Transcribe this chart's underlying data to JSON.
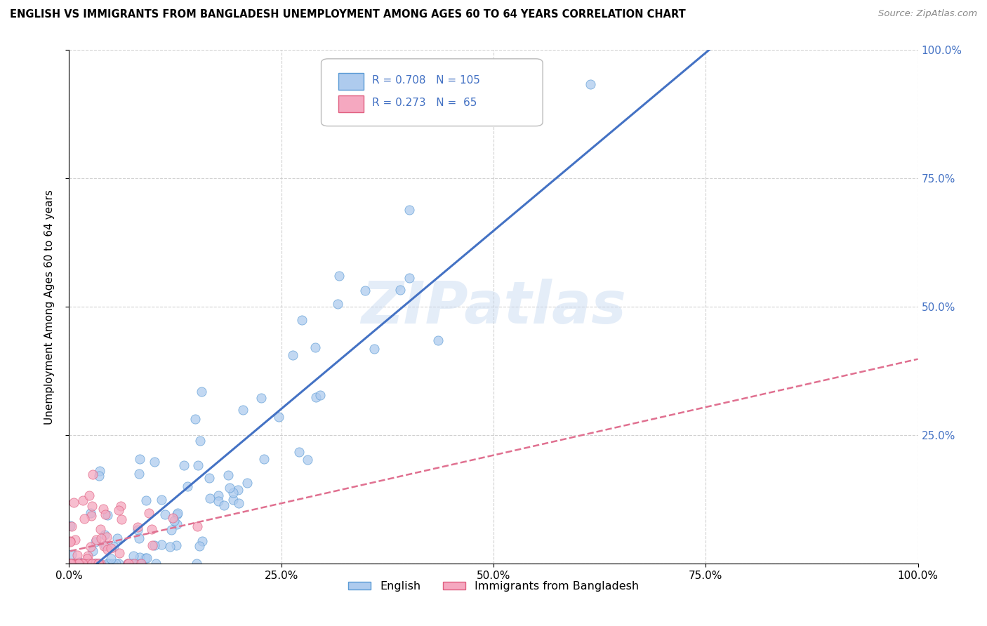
{
  "title": "ENGLISH VS IMMIGRANTS FROM BANGLADESH UNEMPLOYMENT AMONG AGES 60 TO 64 YEARS CORRELATION CHART",
  "source": "Source: ZipAtlas.com",
  "ylabel": "Unemployment Among Ages 60 to 64 years",
  "english_R": 0.708,
  "english_N": 105,
  "bangladesh_R": 0.273,
  "bangladesh_N": 65,
  "english_color": "#aecbee",
  "bangladesh_color": "#f5a8c0",
  "english_edge_color": "#5b9bd5",
  "bangladesh_edge_color": "#e06080",
  "english_line_color": "#4472c4",
  "bangladesh_line_color": "#e07090",
  "watermark_text": "ZIPatlas",
  "watermark_color": "#c5d8f0",
  "xlim": [
    0,
    1
  ],
  "ylim": [
    0,
    1
  ],
  "tick_vals": [
    0,
    0.25,
    0.5,
    0.75,
    1.0
  ],
  "xtick_labels": [
    "0.0%",
    "25.0%",
    "50.0%",
    "75.0%",
    "100.0%"
  ],
  "ytick_labels_left": [
    "",
    "",
    "",
    "",
    ""
  ],
  "ytick_labels_right": [
    "",
    "25.0%",
    "50.0%",
    "75.0%",
    "100.0%"
  ],
  "legend_text_color": "#4472c4",
  "grid_color": "#cccccc",
  "background_color": "#ffffff"
}
